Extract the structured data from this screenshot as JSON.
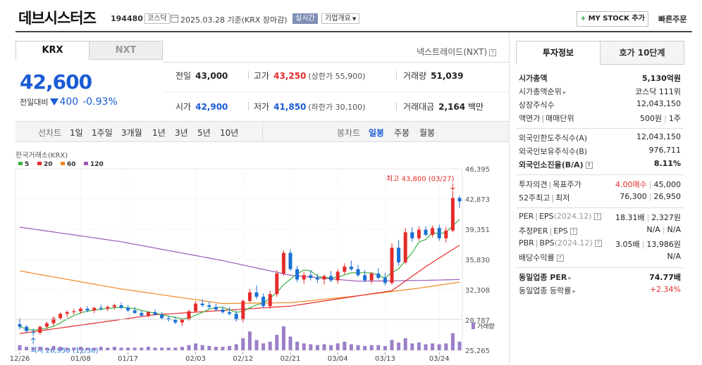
{
  "header": {
    "name": "데브시스터즈",
    "code": "194480",
    "market": "코스닥",
    "date": "2025.03.28  기준(KRX 장마감)",
    "realtime": "실시간",
    "corp": "기업개요",
    "mystock": "MY STOCK 추가",
    "quick": "빠른주문"
  },
  "market_tabs": [
    "KRX",
    "NXT"
  ],
  "nxt_link": "넥스트레이드(NXT)",
  "quote": {
    "price": "42,600",
    "change_label": "전일대비",
    "change": "400",
    "change_pct": "-0.93%"
  },
  "stats": {
    "prev_k": "전일",
    "prev_v": "43,000",
    "high_k": "고가",
    "high_v": "43,250",
    "upper_k": "상한가",
    "upper_v": "55,900",
    "vol_k": "거래량",
    "vol_v": "51,039",
    "open_k": "시가",
    "open_v": "42,900",
    "low_k": "저가",
    "low_v": "41,850",
    "lower_k": "하한가",
    "lower_v": "30,100",
    "amt_k": "거래대금",
    "amt_v": "2,164",
    "amt_unit": "백만"
  },
  "toolbar": {
    "line": "선차트",
    "periods": [
      "1일",
      "1주일",
      "3개월",
      "1년",
      "3년",
      "5년",
      "10년"
    ],
    "candle": "봉차트",
    "candle_types": [
      "일봉",
      "주봉",
      "월봉"
    ]
  },
  "chart_data": {
    "type": "candlestick",
    "source_label": "한국거래소(KRX)",
    "ma_legend": [
      {
        "name": "5",
        "color": "#3cb043"
      },
      {
        "name": "20",
        "color": "#e52c2c"
      },
      {
        "name": "60",
        "color": "#f08a24"
      },
      {
        "name": "120",
        "color": "#9b59b6"
      }
    ],
    "up_color": "#e52c2c",
    "down_color": "#1a6fd4",
    "y_ticks": [
      "46,395",
      "42,873",
      "39,351",
      "35,830",
      "32,308",
      "28,787",
      "25,265"
    ],
    "ylim": [
      25265,
      46395
    ],
    "x_ticks": [
      "12/26",
      "01/08",
      "01/17",
      "02/03",
      "02/12",
      "02/21",
      "03/04",
      "03/13",
      "03/24"
    ],
    "max_annotation": "최고 43,800 (03/27)",
    "min_annotation": "최저 26,950 (12/30)",
    "volume_label": "거래량",
    "candles": [
      [
        28300,
        29000,
        27700,
        28000
      ],
      [
        28000,
        28200,
        27300,
        27500
      ],
      [
        27400,
        27800,
        26950,
        27300
      ],
      [
        27300,
        28100,
        27100,
        28000
      ],
      [
        28000,
        28600,
        27700,
        28400
      ],
      [
        28400,
        29200,
        28100,
        29000
      ],
      [
        29000,
        29700,
        28800,
        29500
      ],
      [
        29500,
        29900,
        29100,
        29700
      ],
      [
        29700,
        30100,
        29400,
        29800
      ],
      [
        29800,
        30300,
        29500,
        30100
      ],
      [
        30100,
        30400,
        29700,
        29900
      ],
      [
        29900,
        30300,
        29600,
        30200
      ],
      [
        30200,
        30600,
        29900,
        30100
      ],
      [
        30100,
        30500,
        29800,
        30300
      ],
      [
        30300,
        30700,
        30000,
        30500
      ],
      [
        30500,
        30800,
        30100,
        30200
      ],
      [
        30200,
        30500,
        29700,
        29900
      ],
      [
        29900,
        30300,
        29500,
        29600
      ],
      [
        29600,
        29900,
        29200,
        29300
      ],
      [
        29300,
        29800,
        29100,
        29700
      ],
      [
        29700,
        30000,
        29300,
        29400
      ],
      [
        29400,
        29700,
        28900,
        29000
      ],
      [
        29000,
        29300,
        28600,
        28800
      ],
      [
        28800,
        29200,
        28300,
        28500
      ],
      [
        28500,
        29000,
        28100,
        28900
      ],
      [
        28900,
        30000,
        28700,
        29800
      ],
      [
        29800,
        31000,
        29600,
        30700
      ],
      [
        30700,
        31200,
        30300,
        30500
      ],
      [
        30500,
        30900,
        30000,
        30300
      ],
      [
        30300,
        30700,
        29800,
        30000
      ],
      [
        30000,
        30400,
        29500,
        29700
      ],
      [
        29700,
        30300,
        29300,
        29500
      ],
      [
        29500,
        29900,
        28600,
        28800
      ],
      [
        28800,
        31200,
        28500,
        31000
      ],
      [
        31000,
        32400,
        30800,
        32000
      ],
      [
        32000,
        32800,
        31200,
        31500
      ],
      [
        31500,
        31900,
        30200,
        30400
      ],
      [
        30400,
        32200,
        30100,
        31800
      ],
      [
        31800,
        34600,
        31500,
        34200
      ],
      [
        34200,
        36900,
        33900,
        36600
      ],
      [
        36600,
        37000,
        34500,
        34700
      ],
      [
        34700,
        35100,
        33200,
        33500
      ],
      [
        33500,
        34400,
        33000,
        34000
      ],
      [
        34000,
        34600,
        33400,
        33700
      ],
      [
        33700,
        34200,
        33100,
        33500
      ],
      [
        33500,
        34100,
        32900,
        33900
      ],
      [
        33900,
        34500,
        33200,
        33400
      ],
      [
        33400,
        34700,
        33000,
        34400
      ],
      [
        34400,
        35400,
        34100,
        35000
      ],
      [
        35000,
        35700,
        34500,
        34700
      ],
      [
        34700,
        35200,
        33800,
        34000
      ],
      [
        34000,
        34600,
        33200,
        33400
      ],
      [
        33400,
        34400,
        33000,
        34200
      ],
      [
        34200,
        34800,
        33500,
        33700
      ],
      [
        33700,
        34300,
        32800,
        33100
      ],
      [
        33100,
        37700,
        32900,
        37200
      ],
      [
        37200,
        38100,
        35100,
        35500
      ],
      [
        35500,
        39500,
        35300,
        39000
      ],
      [
        39000,
        39600,
        37900,
        38300
      ],
      [
        38300,
        39700,
        38000,
        39300
      ],
      [
        39300,
        39700,
        38500,
        38700
      ],
      [
        38700,
        39800,
        38400,
        39500
      ],
      [
        39500,
        39900,
        38000,
        38300
      ],
      [
        38300,
        39600,
        37800,
        39200
      ],
      [
        39200,
        43800,
        39000,
        43000
      ],
      [
        43000,
        43250,
        41850,
        42600
      ]
    ],
    "volumes": [
      6,
      4,
      3,
      4,
      3,
      5,
      4,
      3,
      3,
      4,
      3,
      3,
      4,
      3,
      4,
      3,
      3,
      3,
      3,
      4,
      3,
      3,
      3,
      3,
      4,
      6,
      8,
      6,
      5,
      4,
      4,
      5,
      7,
      14,
      22,
      12,
      8,
      10,
      18,
      28,
      16,
      10,
      8,
      7,
      6,
      7,
      6,
      8,
      10,
      7,
      6,
      5,
      6,
      6,
      5,
      12,
      9,
      14,
      8,
      9,
      7,
      8,
      7,
      8,
      20,
      10
    ],
    "ma5_start": 28000,
    "ma5_end": 41500,
    "ma20": [
      [
        0,
        27200
      ],
      [
        20,
        29400
      ],
      [
        40,
        30400
      ],
      [
        55,
        32200
      ],
      [
        60,
        35000
      ],
      [
        65,
        37500
      ]
    ],
    "ma60": [
      [
        0,
        34500
      ],
      [
        15,
        32400
      ],
      [
        30,
        30700
      ],
      [
        40,
        30800
      ],
      [
        50,
        31600
      ],
      [
        60,
        32600
      ],
      [
        65,
        33200
      ]
    ],
    "ma120": [
      [
        0,
        39600
      ],
      [
        15,
        37900
      ],
      [
        30,
        35700
      ],
      [
        40,
        34000
      ],
      [
        50,
        33300
      ],
      [
        60,
        33400
      ],
      [
        65,
        33500
      ]
    ]
  },
  "right_tabs": [
    "투자정보",
    "호가 10단계"
  ],
  "info": {
    "g1": [
      {
        "k": "시가총액",
        "v": "5,130억원",
        "bold": true
      },
      {
        "k": "시가총액순위",
        "v": "코스닥 111위"
      },
      {
        "k": "상장주식수",
        "v": "12,043,150"
      },
      {
        "k": "액면가",
        "k2": "매매단위",
        "v": "500원",
        "v2": "1주"
      }
    ],
    "g2": [
      {
        "k": "외국인한도주식수(A)",
        "v": "12,043,150"
      },
      {
        "k": "외국인보유주식수(B)",
        "v": "976,711"
      },
      {
        "k": "외국인소진율(B/A)",
        "v": "8.11%",
        "bold": true
      }
    ],
    "g3": [
      {
        "k": "투자의견",
        "k2": "목표주가",
        "v": "4.00매수",
        "v2": "45,000"
      },
      {
        "k": "52주최고",
        "k2": "최저",
        "v": "76,300",
        "v2": "26,950"
      }
    ],
    "g4": [
      {
        "k": "PER",
        "k2": "EPS",
        "k3": "(2024.12)",
        "v": "18.31배",
        "v2": "2,327원"
      },
      {
        "k": "추정PER",
        "k2": "EPS",
        "v": "N/A",
        "v2": "N/A"
      },
      {
        "k": "PBR",
        "k2": "BPS",
        "k3": "(2024.12)",
        "v": "3.05배",
        "v2": "13,986원"
      },
      {
        "k": "배당수익률",
        "v": "N/A"
      }
    ],
    "g5": [
      {
        "k": "동일업종 PER",
        "v": "74.77배",
        "bold": true
      },
      {
        "k": "동일업종 등락률",
        "v": "+2.34%"
      }
    ]
  }
}
